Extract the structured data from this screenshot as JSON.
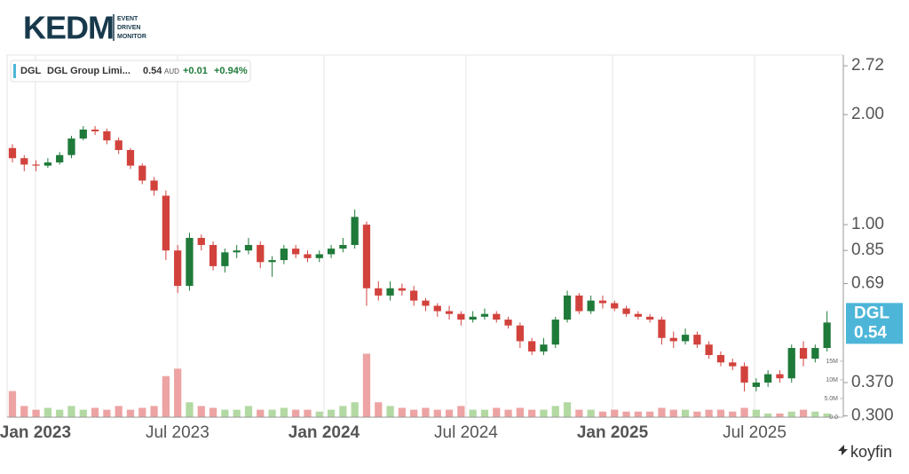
{
  "header": {
    "logo": "KEDM",
    "logo_lines": [
      "EVENT",
      "DRIVEN",
      "MONITOR"
    ],
    "brand": "koyfin"
  },
  "chart_data": {
    "type": "candlestick",
    "legend": {
      "ticker": "DGL",
      "name": "DGL Group Limi...",
      "price": "0.54",
      "currency": "AUD",
      "change": "+0.01",
      "change_pct": "+0.94%"
    },
    "last_tag": {
      "ticker": "DGL",
      "price": "0.54"
    },
    "open": [
      1.62,
      1.52,
      1.46,
      1.45,
      1.48,
      1.55,
      1.72,
      1.82,
      1.8,
      1.7,
      1.6,
      1.45,
      1.32,
      1.2,
      0.85,
      0.68,
      0.92,
      0.88,
      0.77,
      0.84,
      0.85,
      0.88,
      0.79,
      0.8,
      0.86,
      0.83,
      0.81,
      0.83,
      0.86,
      0.88,
      1.0,
      0.67,
      0.64,
      0.67,
      0.66,
      0.62,
      0.6,
      0.58,
      0.57,
      0.55,
      0.56,
      0.57,
      0.55,
      0.53,
      0.48,
      0.45,
      0.47,
      0.55,
      0.64,
      0.58,
      0.62,
      0.61,
      0.59,
      0.57,
      0.56,
      0.55,
      0.49,
      0.48,
      0.5,
      0.47,
      0.44,
      0.42,
      0.41,
      0.36,
      0.37,
      0.39,
      0.38,
      0.46,
      0.43,
      0.46
    ],
    "high": [
      1.66,
      1.55,
      1.5,
      1.52,
      1.58,
      1.75,
      1.86,
      1.86,
      1.83,
      1.73,
      1.62,
      1.47,
      1.35,
      1.24,
      0.88,
      0.95,
      0.94,
      0.9,
      0.86,
      0.88,
      0.92,
      0.9,
      0.82,
      0.88,
      0.88,
      0.85,
      0.85,
      0.88,
      0.92,
      1.1,
      1.02,
      0.7,
      0.7,
      0.69,
      0.68,
      0.63,
      0.61,
      0.6,
      0.58,
      0.58,
      0.59,
      0.58,
      0.56,
      0.54,
      0.49,
      0.49,
      0.56,
      0.66,
      0.65,
      0.64,
      0.64,
      0.62,
      0.6,
      0.58,
      0.57,
      0.56,
      0.51,
      0.52,
      0.51,
      0.48,
      0.45,
      0.43,
      0.42,
      0.38,
      0.4,
      0.4,
      0.47,
      0.48,
      0.47,
      0.58
    ],
    "low": [
      1.48,
      1.4,
      1.4,
      1.43,
      1.46,
      1.52,
      1.7,
      1.76,
      1.66,
      1.56,
      1.42,
      1.29,
      1.2,
      0.8,
      0.65,
      0.66,
      0.85,
      0.75,
      0.74,
      0.81,
      0.83,
      0.76,
      0.72,
      0.78,
      0.81,
      0.79,
      0.79,
      0.81,
      0.84,
      0.86,
      0.6,
      0.62,
      0.62,
      0.64,
      0.6,
      0.58,
      0.56,
      0.55,
      0.53,
      0.54,
      0.55,
      0.54,
      0.52,
      0.46,
      0.44,
      0.44,
      0.46,
      0.54,
      0.57,
      0.57,
      0.59,
      0.58,
      0.56,
      0.55,
      0.54,
      0.47,
      0.46,
      0.47,
      0.46,
      0.43,
      0.41,
      0.4,
      0.35,
      0.35,
      0.36,
      0.37,
      0.37,
      0.41,
      0.42,
      0.45
    ],
    "close": [
      1.52,
      1.46,
      1.45,
      1.48,
      1.55,
      1.72,
      1.82,
      1.8,
      1.7,
      1.6,
      1.45,
      1.32,
      1.24,
      0.85,
      0.68,
      0.92,
      0.88,
      0.77,
      0.84,
      0.85,
      0.88,
      0.79,
      0.8,
      0.86,
      0.83,
      0.81,
      0.83,
      0.86,
      0.88,
      1.05,
      0.67,
      0.64,
      0.67,
      0.66,
      0.62,
      0.6,
      0.58,
      0.57,
      0.55,
      0.56,
      0.57,
      0.55,
      0.53,
      0.48,
      0.45,
      0.47,
      0.55,
      0.64,
      0.58,
      0.62,
      0.61,
      0.59,
      0.57,
      0.56,
      0.55,
      0.49,
      0.48,
      0.5,
      0.47,
      0.44,
      0.42,
      0.41,
      0.37,
      0.37,
      0.39,
      0.38,
      0.46,
      0.43,
      0.46,
      0.54
    ],
    "volume": [
      7,
      3,
      2,
      2.5,
      2,
      3,
      2,
      2.5,
      2,
      3,
      2,
      2.5,
      3,
      11,
      13,
      4,
      3,
      2.5,
      2,
      2,
      3,
      2,
      2,
      2.5,
      2,
      2,
      1.5,
      2,
      3,
      4,
      17,
      4,
      3,
      2.5,
      2,
      2.5,
      2,
      2,
      3,
      2,
      2,
      2.5,
      2,
      2.5,
      2,
      2,
      3,
      4,
      2,
      2,
      1.5,
      2,
      1.5,
      1.5,
      1.5,
      2.5,
      2,
      2,
      1.5,
      2,
      2,
      1.5,
      2.5,
      2,
      1,
      1,
      1.5,
      2,
      1.5,
      1
    ],
    "xlim": [
      -0.45,
      70.38
    ],
    "xticks": [
      {
        "value": 1.95,
        "label": "Jan 2023"
      },
      {
        "value": 13.98,
        "label": "Jul 2023"
      },
      {
        "value": 26.39,
        "label": "Jan 2024"
      },
      {
        "value": 38.42,
        "label": "Jul 2024"
      },
      {
        "value": 50.83,
        "label": "Jan 2025"
      },
      {
        "value": 62.86,
        "label": "Jul 2025"
      }
    ],
    "ylim": [
      0.2975,
      2.91
    ],
    "log_scale": true,
    "yticks": [
      2.72,
      {
        "value": 2,
        "label": "2.00"
      },
      {
        "value": 1,
        "label": "1.00"
      },
      0.85,
      0.69,
      {
        "value": 0.37,
        "label": "0.370"
      },
      {
        "value": 0.3,
        "label": "0.300"
      }
    ],
    "volume_ylim": [
      0,
      97
    ],
    "volume_ticks": [
      {
        "value": 15,
        "label": "15M"
      },
      {
        "value": 10,
        "label": "10M"
      },
      {
        "value": 5,
        "label": "5.0M"
      },
      {
        "value": 0,
        "label": "0.0"
      }
    ],
    "grid": true,
    "up_color": "#1f7a3a",
    "down_color": "#d2423c",
    "volume_up_color": "#b3d9a3",
    "volume_down_color": "#eda3a3",
    "tag_color": "#4db6d8"
  }
}
